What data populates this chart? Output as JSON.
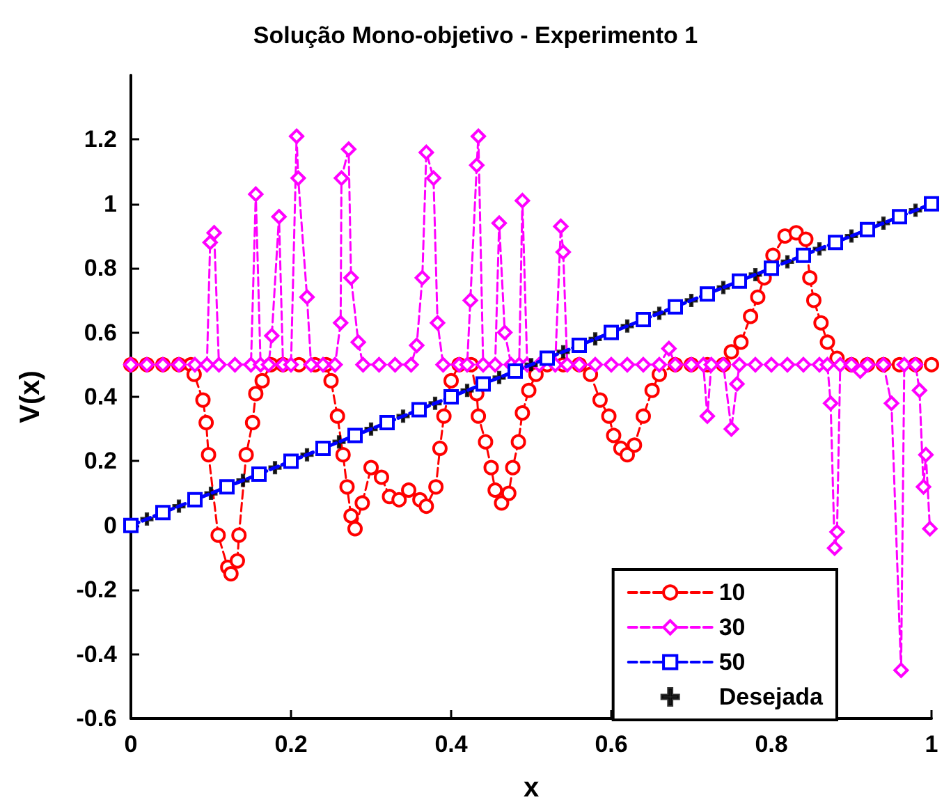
{
  "chart_data": {
    "type": "line",
    "title": "Solução Mono-objetivo - Experimento 1",
    "xlabel": "x",
    "ylabel": "V(x)",
    "xlim": [
      0,
      1
    ],
    "xticks": [
      0,
      0.2,
      0.4,
      0.6,
      0.8,
      1
    ],
    "ylim": [
      -0.6,
      1.4
    ],
    "yticks": [
      -0.6,
      -0.4,
      -0.2,
      0,
      0.2,
      0.4,
      0.6,
      0.8,
      1,
      1.2
    ],
    "grid": false,
    "legend": "bottom right",
    "series": [
      {
        "name": "10",
        "color": "#ff0000",
        "marker": "circle",
        "line_style": "dashed",
        "x": [
          0,
          0.02,
          0.04,
          0.06,
          0.075,
          0.079,
          0.09,
          0.094,
          0.097,
          0.109,
          0.121,
          0.125,
          0.133,
          0.135,
          0.144,
          0.152,
          0.156,
          0.164,
          0.175,
          0.19,
          0.21,
          0.23,
          0.244,
          0.25,
          0.258,
          0.265,
          0.27,
          0.275,
          0.28,
          0.289,
          0.3,
          0.313,
          0.323,
          0.335,
          0.347,
          0.361,
          0.369,
          0.381,
          0.386,
          0.391,
          0.4,
          0.41,
          0.425,
          0.432,
          0.434,
          0.443,
          0.45,
          0.455,
          0.463,
          0.472,
          0.477,
          0.484,
          0.489,
          0.497,
          0.506,
          0.52,
          0.54,
          0.56,
          0.574,
          0.586,
          0.597,
          0.603,
          0.612,
          0.62,
          0.629,
          0.64,
          0.651,
          0.66,
          0.68,
          0.7,
          0.72,
          0.74,
          0.75,
          0.762,
          0.774,
          0.783,
          0.791,
          0.802,
          0.817,
          0.831,
          0.843,
          0.848,
          0.853,
          0.862,
          0.87,
          0.882,
          0.9,
          0.92,
          0.94,
          0.96,
          0.98,
          1
        ],
        "values": [
          0.5,
          0.5,
          0.5,
          0.5,
          0.5,
          0.47,
          0.39,
          0.32,
          0.22,
          -0.03,
          -0.13,
          -0.15,
          -0.11,
          -0.03,
          0.22,
          0.32,
          0.41,
          0.45,
          0.5,
          0.5,
          0.5,
          0.5,
          0.5,
          0.45,
          0.34,
          0.22,
          0.12,
          0.03,
          -0.01,
          0.07,
          0.18,
          0.15,
          0.09,
          0.08,
          0.11,
          0.08,
          0.06,
          0.12,
          0.24,
          0.34,
          0.45,
          0.5,
          0.5,
          0.41,
          0.34,
          0.26,
          0.18,
          0.11,
          0.07,
          0.1,
          0.18,
          0.26,
          0.35,
          0.42,
          0.47,
          0.5,
          0.5,
          0.5,
          0.47,
          0.39,
          0.34,
          0.28,
          0.24,
          0.22,
          0.25,
          0.34,
          0.42,
          0.47,
          0.5,
          0.5,
          0.5,
          0.5,
          0.54,
          0.57,
          0.65,
          0.71,
          0.77,
          0.84,
          0.9,
          0.91,
          0.89,
          0.77,
          0.7,
          0.63,
          0.57,
          0.52,
          0.5,
          0.5,
          0.5,
          0.5,
          0.5,
          0.5
        ]
      },
      {
        "name": "30",
        "color": "#ff00ff",
        "marker": "diamond",
        "line_style": "dashed",
        "x": [
          0,
          0.02,
          0.04,
          0.06,
          0.08,
          0.095,
          0.099,
          0.104,
          0.11,
          0.13,
          0.15,
          0.156,
          0.162,
          0.172,
          0.176,
          0.185,
          0.19,
          0.2,
          0.207,
          0.209,
          0.22,
          0.225,
          0.24,
          0.255,
          0.262,
          0.263,
          0.272,
          0.275,
          0.284,
          0.29,
          0.31,
          0.33,
          0.35,
          0.357,
          0.364,
          0.369,
          0.378,
          0.383,
          0.39,
          0.41,
          0.42,
          0.424,
          0.432,
          0.434,
          0.44,
          0.455,
          0.46,
          0.467,
          0.475,
          0.485,
          0.489,
          0.495,
          0.51,
          0.53,
          0.537,
          0.54,
          0.545,
          0.56,
          0.58,
          0.6,
          0.62,
          0.64,
          0.66,
          0.672,
          0.68,
          0.7,
          0.715,
          0.72,
          0.725,
          0.74,
          0.75,
          0.757,
          0.76,
          0.78,
          0.8,
          0.82,
          0.84,
          0.86,
          0.87,
          0.874,
          0.879,
          0.882,
          0.886,
          0.9,
          0.911,
          0.92,
          0.94,
          0.95,
          0.962,
          0.966,
          0.98,
          0.985,
          0.99,
          0.993,
          0.998
        ],
        "values": [
          0.5,
          0.5,
          0.5,
          0.5,
          0.5,
          0.5,
          0.88,
          0.91,
          0.5,
          0.5,
          0.5,
          1.03,
          0.5,
          0.5,
          0.59,
          0.96,
          0.5,
          0.5,
          1.21,
          1.08,
          0.71,
          0.5,
          0.5,
          0.5,
          0.63,
          1.08,
          1.17,
          0.77,
          0.57,
          0.5,
          0.5,
          0.5,
          0.5,
          0.56,
          0.77,
          1.16,
          1.08,
          0.63,
          0.5,
          0.5,
          0.5,
          0.7,
          1.12,
          1.21,
          0.5,
          0.5,
          0.94,
          0.6,
          0.5,
          0.5,
          1.01,
          0.5,
          0.5,
          0.5,
          0.93,
          0.85,
          0.5,
          0.5,
          0.5,
          0.5,
          0.5,
          0.5,
          0.5,
          0.55,
          0.5,
          0.5,
          0.5,
          0.34,
          0.5,
          0.5,
          0.3,
          0.44,
          0.5,
          0.5,
          0.5,
          0.5,
          0.5,
          0.5,
          0.5,
          0.38,
          -0.07,
          -0.02,
          0.5,
          0.5,
          0.48,
          0.5,
          0.5,
          0.38,
          -0.45,
          0.5,
          0.5,
          0.42,
          0.12,
          0.22,
          -0.01
        ]
      },
      {
        "name": "50",
        "color": "#0000ff",
        "marker": "square",
        "line_style": "dashed",
        "x": [
          0,
          0.04,
          0.08,
          0.12,
          0.16,
          0.2,
          0.24,
          0.28,
          0.32,
          0.36,
          0.4,
          0.44,
          0.48,
          0.52,
          0.56,
          0.6,
          0.64,
          0.68,
          0.72,
          0.76,
          0.8,
          0.84,
          0.88,
          0.92,
          0.96,
          1
        ],
        "values": [
          0,
          0.04,
          0.08,
          0.12,
          0.16,
          0.2,
          0.24,
          0.28,
          0.32,
          0.36,
          0.4,
          0.44,
          0.48,
          0.52,
          0.56,
          0.6,
          0.64,
          0.68,
          0.72,
          0.76,
          0.8,
          0.84,
          0.88,
          0.92,
          0.96,
          1
        ]
      },
      {
        "name": "Desejada",
        "type": "scatter",
        "color": "#000000",
        "marker": "cross",
        "x": [
          0.02,
          0.06,
          0.1,
          0.14,
          0.18,
          0.22,
          0.26,
          0.3,
          0.34,
          0.38,
          0.42,
          0.46,
          0.5,
          0.54,
          0.58,
          0.62,
          0.66,
          0.7,
          0.74,
          0.78,
          0.82,
          0.86,
          0.9,
          0.94,
          0.98
        ],
        "values": [
          0.02,
          0.06,
          0.1,
          0.14,
          0.18,
          0.22,
          0.26,
          0.3,
          0.34,
          0.38,
          0.42,
          0.46,
          0.5,
          0.54,
          0.58,
          0.62,
          0.66,
          0.7,
          0.74,
          0.78,
          0.82,
          0.86,
          0.9,
          0.94,
          0.98
        ]
      }
    ]
  }
}
